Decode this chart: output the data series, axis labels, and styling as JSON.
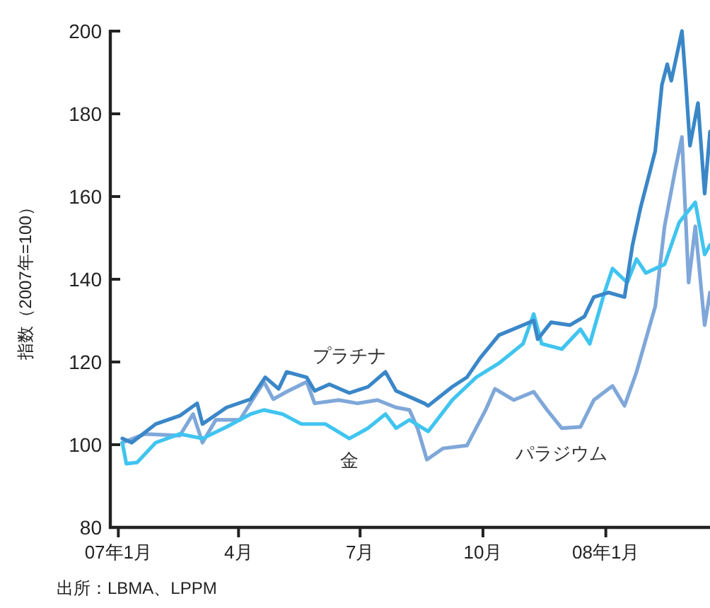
{
  "chart_data": {
    "type": "line",
    "ylabel": "指数（2007年=100）",
    "annotations": [
      "出所：LBMA、LPPM"
    ],
    "xlim": [
      "2006-12-26",
      "2008-03-19"
    ],
    "xticks": [
      {
        "value": "2007-01-01",
        "label": "07年1月"
      },
      {
        "value": "2007-04-01",
        "label": "4月"
      },
      {
        "value": "2007-07-01",
        "label": "7月"
      },
      {
        "value": "2007-10-01",
        "label": "10月"
      },
      {
        "value": "2008-01-01",
        "label": "08年1月"
      }
    ],
    "ylim": [
      80,
      200
    ],
    "yticks": [
      80,
      100,
      120,
      140,
      160,
      180,
      200
    ],
    "grid": false,
    "line_style": "solid",
    "marker": "none",
    "series": [
      {
        "name": "パラジウム",
        "color": "#7fa7d9",
        "x": [
          "2007-01-04",
          "2007-01-21",
          "2007-02-16",
          "2007-02-26",
          "2007-03-05",
          "2007-03-15",
          "2007-04-02",
          "2007-04-20",
          "2007-04-27",
          "2007-05-07",
          "2007-05-22",
          "2007-05-28",
          "2007-06-15",
          "2007-06-29",
          "2007-07-14",
          "2007-07-28",
          "2007-08-07",
          "2007-08-13",
          "2007-08-20",
          "2007-09-01",
          "2007-09-19",
          "2007-10-03",
          "2007-10-10",
          "2007-10-24",
          "2007-11-08",
          "2007-11-18",
          "2007-11-29",
          "2007-12-13",
          "2007-12-23",
          "2008-01-06",
          "2008-01-15",
          "2008-01-24",
          "2008-01-31",
          "2008-02-07",
          "2008-02-14",
          "2008-02-22",
          "2008-02-27",
          "2008-03-03",
          "2008-03-08",
          "2008-03-15",
          "2008-03-19"
        ],
        "values": [
          100.5,
          102.6,
          102.2,
          107.4,
          100.5,
          106,
          106,
          115.2,
          111,
          112.8,
          115.2,
          110,
          110.8,
          110,
          110.8,
          109,
          108.4,
          104,
          96.4,
          99.1,
          99.8,
          108.4,
          113.5,
          110.8,
          112.8,
          108.4,
          104,
          104.3,
          110.8,
          114.2,
          109.4,
          117.6,
          125.5,
          133.4,
          152.8,
          166.5,
          174.4,
          139.2,
          152.8,
          128.9,
          136.8
        ]
      },
      {
        "name": "金",
        "color": "#40c4f0",
        "x": [
          "2007-01-04",
          "2007-01-07",
          "2007-01-15",
          "2007-01-29",
          "2007-02-16",
          "2007-03-05",
          "2007-03-23",
          "2007-04-10",
          "2007-04-20",
          "2007-05-04",
          "2007-05-18",
          "2007-06-05",
          "2007-06-23",
          "2007-07-07",
          "2007-07-20",
          "2007-07-28",
          "2007-08-07",
          "2007-08-21",
          "2007-09-08",
          "2007-09-26",
          "2007-10-13",
          "2007-10-31",
          "2007-11-08",
          "2007-11-14",
          "2007-11-29",
          "2007-12-13",
          "2007-12-20",
          "2007-12-31",
          "2008-01-06",
          "2008-01-17",
          "2008-01-24",
          "2008-01-31",
          "2008-02-14",
          "2008-02-25",
          "2008-03-08",
          "2008-03-15",
          "2008-03-19"
        ],
        "values": [
          100.5,
          95.4,
          95.7,
          100.5,
          102.6,
          101.5,
          104.3,
          107.4,
          108.4,
          107.4,
          105,
          105,
          101.5,
          104,
          107.4,
          104,
          106,
          103.2,
          110.8,
          116.3,
          119.7,
          124.4,
          131.6,
          124.4,
          123.1,
          127.9,
          124.4,
          136.8,
          142.6,
          139.2,
          144.9,
          141.5,
          143.6,
          153.8,
          158.6,
          146,
          148.3
        ]
      },
      {
        "name": "プラチナ",
        "color": "#3a87c8",
        "x": [
          "2007-01-04",
          "2007-01-11",
          "2007-01-29",
          "2007-02-16",
          "2007-03-01",
          "2007-03-05",
          "2007-03-23",
          "2007-04-10",
          "2007-04-21",
          "2007-05-01",
          "2007-05-07",
          "2007-05-22",
          "2007-05-28",
          "2007-06-08",
          "2007-06-23",
          "2007-07-07",
          "2007-07-20",
          "2007-07-28",
          "2007-08-18",
          "2007-08-21",
          "2007-09-08",
          "2007-09-19",
          "2007-09-29",
          "2007-10-13",
          "2007-10-31",
          "2007-11-08",
          "2007-11-11",
          "2007-11-21",
          "2007-12-05",
          "2007-12-16",
          "2007-12-23",
          "2008-01-03",
          "2008-01-15",
          "2008-01-21",
          "2008-01-27",
          "2008-02-07",
          "2008-02-12",
          "2008-02-16",
          "2008-02-19",
          "2008-02-27",
          "2008-03-01",
          "2008-03-04",
          "2008-03-10",
          "2008-03-15",
          "2008-03-19"
        ],
        "values": [
          101.5,
          100.5,
          105,
          107,
          110,
          105,
          109,
          111,
          116.3,
          113.5,
          117.6,
          116.3,
          113,
          114.6,
          112.5,
          114,
          117.6,
          113,
          110,
          109.4,
          114,
          116.3,
          121,
          126.5,
          128.9,
          130,
          125.5,
          129.6,
          128.9,
          131,
          135.7,
          136.8,
          135.7,
          148.3,
          157.3,
          171,
          187,
          192,
          188,
          200,
          187,
          172.3,
          182.6,
          160.7,
          175.7
        ]
      }
    ]
  }
}
